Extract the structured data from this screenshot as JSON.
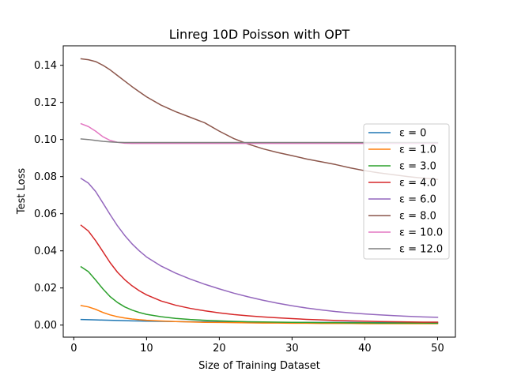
{
  "chart_data": {
    "type": "line",
    "title": "Linreg 10D Poisson with OPT",
    "xlabel": "Size of Training Dataset",
    "ylabel": "Test Loss",
    "xlim": [
      -1.45,
      52.45
    ],
    "ylim": [
      -0.0065,
      0.1505
    ],
    "xticks": [
      0,
      10,
      20,
      30,
      40,
      50
    ],
    "xtick_labels": [
      "0",
      "10",
      "20",
      "30",
      "40",
      "50"
    ],
    "yticks": [
      0.0,
      0.02,
      0.04,
      0.06,
      0.08,
      0.1,
      0.12,
      0.14
    ],
    "ytick_labels": [
      "0.00",
      "0.02",
      "0.04",
      "0.06",
      "0.08",
      "0.10",
      "0.12",
      "0.14"
    ],
    "grid": false,
    "legend_position": "center-right",
    "x": [
      1,
      2,
      3,
      4,
      5,
      6,
      7,
      8,
      9,
      10,
      12,
      14,
      16,
      18,
      20,
      22,
      24,
      26,
      28,
      30,
      32,
      34,
      36,
      38,
      40,
      42,
      44,
      46,
      48,
      50
    ],
    "series": [
      {
        "name": "ε = 0",
        "color": "#1f77b4",
        "values": [
          0.003,
          0.0029,
          0.0028,
          0.0027,
          0.0026,
          0.0025,
          0.0024,
          0.0023,
          0.0022,
          0.0021,
          0.002,
          0.0019,
          0.0018,
          0.0018,
          0.0017,
          0.0016,
          0.0016,
          0.0015,
          0.0015,
          0.0015,
          0.0014,
          0.0014,
          0.0014,
          0.0014,
          0.0013,
          0.0013,
          0.0013,
          0.0013,
          0.0013,
          0.0013
        ]
      },
      {
        "name": "ε = 1.0",
        "color": "#ff7f0e",
        "values": [
          0.0105,
          0.0098,
          0.0085,
          0.0068,
          0.0055,
          0.0045,
          0.0038,
          0.0033,
          0.0029,
          0.0026,
          0.0022,
          0.0019,
          0.0017,
          0.0015,
          0.0014,
          0.0013,
          0.0012,
          0.0011,
          0.0011,
          0.001,
          0.001,
          0.0009,
          0.0009,
          0.0009,
          0.0008,
          0.0008,
          0.0008,
          0.0008,
          0.0008,
          0.0008
        ]
      },
      {
        "name": "ε = 3.0",
        "color": "#2ca02c",
        "values": [
          0.0314,
          0.0288,
          0.0243,
          0.0195,
          0.0153,
          0.0122,
          0.0098,
          0.0081,
          0.0068,
          0.0058,
          0.0045,
          0.0036,
          0.003,
          0.0026,
          0.0023,
          0.002,
          0.0018,
          0.0017,
          0.0016,
          0.0015,
          0.0014,
          0.0013,
          0.0013,
          0.0012,
          0.0012,
          0.0011,
          0.0011,
          0.0011,
          0.0011,
          0.001
        ]
      },
      {
        "name": "ε = 4.0",
        "color": "#d62728",
        "values": [
          0.0538,
          0.0507,
          0.0455,
          0.0396,
          0.0336,
          0.0285,
          0.0245,
          0.0212,
          0.0185,
          0.0163,
          0.013,
          0.0107,
          0.009,
          0.0077,
          0.0066,
          0.0057,
          0.005,
          0.0044,
          0.0039,
          0.0035,
          0.0031,
          0.0028,
          0.0025,
          0.0023,
          0.0021,
          0.0019,
          0.0018,
          0.0017,
          0.0016,
          0.0016
        ]
      },
      {
        "name": "ε = 6.0",
        "color": "#9467bd",
        "values": [
          0.079,
          0.0765,
          0.072,
          0.0658,
          0.0595,
          0.0535,
          0.0483,
          0.0438,
          0.04,
          0.0367,
          0.0318,
          0.028,
          0.0248,
          0.022,
          0.0195,
          0.0172,
          0.0152,
          0.0134,
          0.0118,
          0.0104,
          0.0092,
          0.0082,
          0.0073,
          0.0066,
          0.006,
          0.0055,
          0.0051,
          0.0047,
          0.0044,
          0.0042
        ]
      },
      {
        "name": "ε = 8.0",
        "color": "#8c564b",
        "values": [
          0.1435,
          0.143,
          0.142,
          0.14,
          0.1375,
          0.1345,
          0.1315,
          0.1285,
          0.1257,
          0.123,
          0.1185,
          0.115,
          0.112,
          0.109,
          0.1045,
          0.1005,
          0.0975,
          0.095,
          0.093,
          0.0913,
          0.0895,
          0.088,
          0.0865,
          0.0847,
          0.0832,
          0.082,
          0.081,
          0.08,
          0.0792,
          0.0785
        ]
      },
      {
        "name": "ε = 10.0",
        "color": "#e377c2",
        "values": [
          0.1085,
          0.107,
          0.1045,
          0.1015,
          0.0995,
          0.0985,
          0.098,
          0.0979,
          0.0979,
          0.0979,
          0.0979,
          0.0979,
          0.0979,
          0.0979,
          0.0979,
          0.0979,
          0.0979,
          0.0979,
          0.0979,
          0.0979,
          0.0979,
          0.0979,
          0.0979,
          0.0979,
          0.0979,
          0.0979,
          0.0979,
          0.0979,
          0.0979,
          0.0979
        ]
      },
      {
        "name": "ε = 12.0",
        "color": "#7f7f7f",
        "values": [
          0.1003,
          0.1,
          0.0995,
          0.099,
          0.0987,
          0.0985,
          0.0984,
          0.0984,
          0.0984,
          0.0984,
          0.0984,
          0.0984,
          0.0984,
          0.0984,
          0.0984,
          0.0984,
          0.0984,
          0.0984,
          0.0984,
          0.0984,
          0.0984,
          0.0984,
          0.0984,
          0.0984,
          0.0984,
          0.0984,
          0.0984,
          0.0984,
          0.0984,
          0.0984
        ]
      }
    ]
  }
}
